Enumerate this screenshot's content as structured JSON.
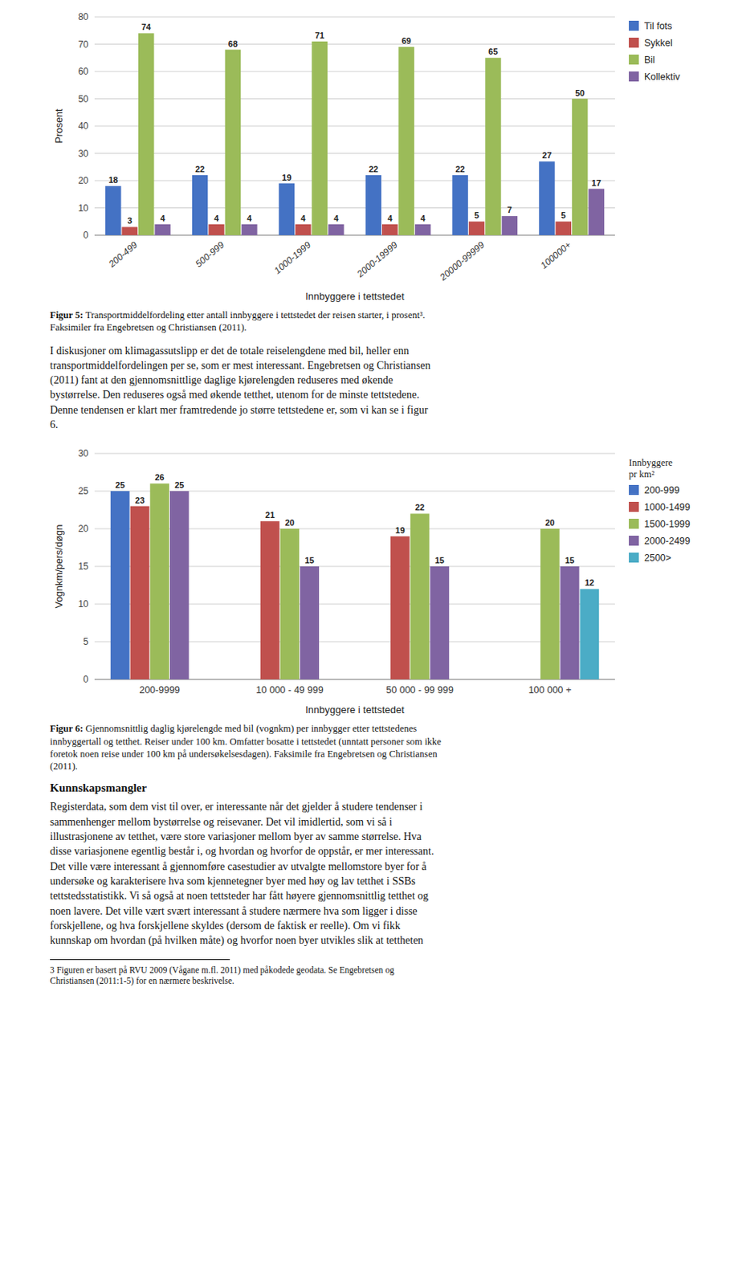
{
  "chart_data": [
    {
      "type": "bar",
      "xlabel": "Innbyggere i tettstedet",
      "ylabel": "Prosent",
      "categories": [
        "200-499",
        "500-999",
        "1000-1999",
        "2000-19999",
        "20000-99999",
        "100000+"
      ],
      "series": [
        {
          "name": "Til fots",
          "color": "#4472C4",
          "values": [
            18,
            22,
            19,
            22,
            22,
            27
          ]
        },
        {
          "name": "Sykkel",
          "color": "#C0504D",
          "values": [
            3,
            4,
            4,
            4,
            5,
            5
          ]
        },
        {
          "name": "Bil",
          "color": "#9BBB59",
          "values": [
            74,
            68,
            71,
            69,
            65,
            50
          ]
        },
        {
          "name": "Kollektiv",
          "color": "#8064A2",
          "values": [
            4,
            4,
            4,
            4,
            7,
            17
          ]
        }
      ],
      "ylim": [
        0,
        80
      ],
      "yticks": [
        0,
        10,
        20,
        30,
        40,
        50,
        60,
        70,
        80
      ],
      "grid": true,
      "legend": "right",
      "data_labels": true,
      "caption_label": "Figur 5: ",
      "caption": "Transportmiddelfordeling etter antall innbyggere i tettstedet der reisen starter, i prosent³.\nFaksimiler fra Engebretsen og Christiansen (2011)."
    },
    {
      "type": "bar",
      "xlabel": "Innbyggere i tettstedet",
      "ylabel": "Vognkm/pers/døgn",
      "categories": [
        "200-9999",
        "10 000 - 49 999",
        "50 000 - 99 999",
        "100 000 +"
      ],
      "series": [
        {
          "name": "200-999",
          "color": "#4472C4",
          "values": [
            25,
            null,
            null,
            null
          ]
        },
        {
          "name": "1000-1499",
          "color": "#C0504D",
          "values": [
            23,
            21,
            19,
            null
          ]
        },
        {
          "name": "1500-1999",
          "color": "#9BBB59",
          "values": [
            26,
            20,
            22,
            20
          ]
        },
        {
          "name": "2000-2499",
          "color": "#8064A2",
          "values": [
            25,
            15,
            15,
            15
          ]
        },
        {
          "name": "2500>",
          "color": "#4BACC6",
          "values": [
            null,
            null,
            null,
            12
          ]
        }
      ],
      "legend_title": "Innbyggere\npr km²",
      "ylim": [
        0,
        30
      ],
      "yticks": [
        0,
        5,
        10,
        15,
        20,
        25,
        30
      ],
      "grid": true,
      "legend": "right",
      "data_labels": true,
      "caption_label": "Figur 6: ",
      "caption": "Gjennomsnittlig daglig kjørelengde med bil (vognkm) per innbygger etter tettstedenes\ninnbyggertall og tetthet. Reiser under 100 km. Omfatter bosatte i tettstedet (unntatt personer som ikke\nforetok noen reise under 100 km på undersøkelsesdagen). Faksimile fra Engebretsen og Christiansen\n(2011)."
    }
  ],
  "text_blocks": [
    {
      "text": "I diskusjoner om klimagassutslipp er det de totale reiselengdene med bil, heller enn\ntransportmiddelfordelingen per se, som er mest interessant. Engebretsen og Christiansen\n(2011) fant at den gjennomsnittlige daglige kjørelengden reduseres med økende\nbystørrelse. Den reduseres også med økende tetthet, utenom for de minste tettstedene.\nDenne tendensen er klart mer framtredende jo større tettstedene er, som vi kan se i figur\n6."
    },
    {
      "title": "Kunnskapsmangler",
      "text": "Registerdata, som dem vist til over, er interessante når det gjelder å studere tendenser i\nsammenhenger mellom bystørrelse og reisevaner. Det vil imidlertid, som vi så i\nillustrasjone​ne av tetthet, være store variasjoner mellom byer av samme størrelse. Hva\ndisse variasjonene egentlig består i, og hvordan og hvorfor de oppstår, er mer interessant.\nDet ville være interessant å gjennomføre casestudier av utvalgte mellomstore byer for å\nundersøke og karakterisere hva som kjennetegner byer med høy og lav tetthet i SSBs\ntettstedsstatistikk. Vi så også at noen tettsteder har fått høyere gjennomsnittlig tetthet og\nnoen lavere. Det ville vært svært interessant å studere nærmere hva som ligger i disse\nforskjellene, og hva forskjellene skyldes (dersom de faktisk er reelle). Om vi fikk\nkunnskap om hvordan (på hvilken måte) og hvorfor noen byer utvikles slik at tettheten"
    }
  ],
  "footnote": "3 Figuren er basert på RVU 2009 (Vågane m.fl. 2011) med påkodede geodata. Se Engebretsen og\nChristiansen (2011:1-5) for en nærmere beskrivelse."
}
